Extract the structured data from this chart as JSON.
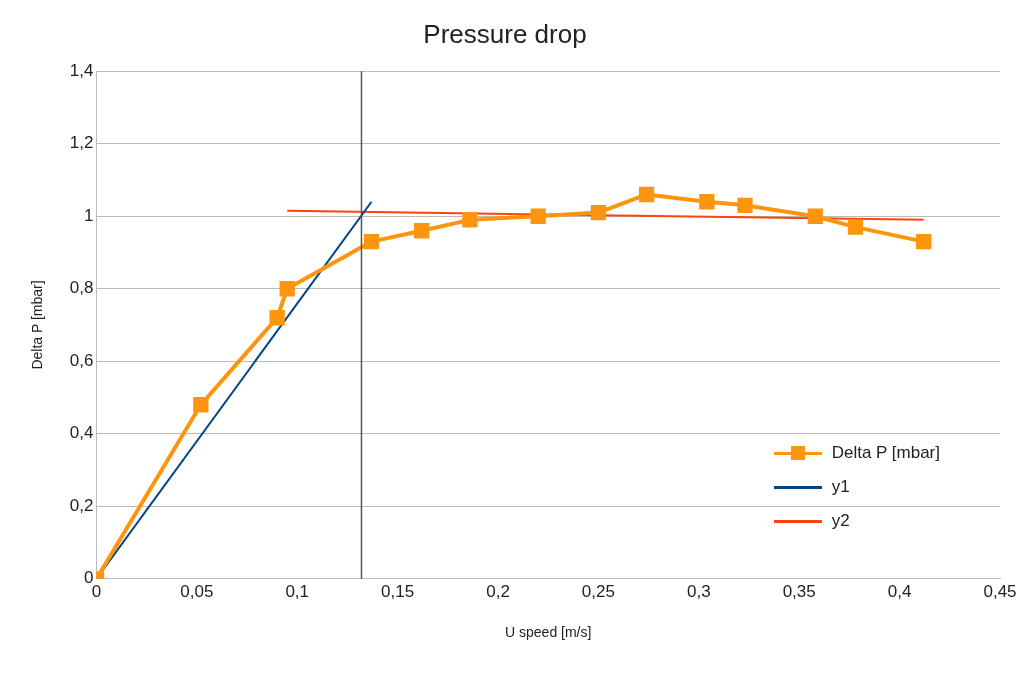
{
  "chart_data": {
    "type": "line",
    "title": "Pressure drop",
    "xlabel": "U speed [m/s]",
    "ylabel": "Delta P [mbar]",
    "xlim": [
      0,
      0.45
    ],
    "ylim": [
      0,
      1.4
    ],
    "xticks": [
      0,
      {
        "value": 0.05,
        "label": "0,05"
      },
      {
        "value": 0.1,
        "label": "0,1"
      },
      {
        "value": 0.15,
        "label": "0,15"
      },
      {
        "value": 0.2,
        "label": "0,2"
      },
      {
        "value": 0.25,
        "label": "0,25"
      },
      {
        "value": 0.3,
        "label": "0,3"
      },
      {
        "value": 0.35,
        "label": "0,35"
      },
      {
        "value": 0.4,
        "label": "0,4"
      },
      {
        "value": 0.45,
        "label": "0,45"
      }
    ],
    "yticks": [
      0,
      {
        "value": 0.2,
        "label": "0,2"
      },
      {
        "value": 0.4,
        "label": "0,4"
      },
      {
        "value": 0.6,
        "label": "0,6"
      },
      {
        "value": 0.8,
        "label": "0,8"
      },
      1,
      {
        "value": 1.2,
        "label": "1,2"
      },
      {
        "value": 1.4,
        "label": "1,4"
      }
    ],
    "grid": "y",
    "legend": "right",
    "marker": "square",
    "line_style": "solid",
    "series": [
      {
        "name": "Delta P [mbar]",
        "color": "#ff950e",
        "x": [
          0,
          0.052,
          0.09,
          0.095,
          0.137,
          0.162,
          0.186,
          0.22,
          0.25,
          0.274,
          0.304,
          0.323,
          0.358,
          0.378,
          0.412
        ],
        "values": [
          0,
          0.48,
          0.72,
          0.8,
          0.93,
          0.96,
          0.99,
          1.0,
          1.01,
          1.06,
          1.04,
          1.03,
          1.0,
          0.97,
          0.93
        ]
      },
      {
        "name": "y1",
        "color": "#004586",
        "marker": "none",
        "x": [
          0,
          0.137
        ],
        "values": [
          0,
          1.04
        ]
      },
      {
        "name": "y2",
        "color": "#ff420e",
        "marker": "none",
        "x": [
          0.095,
          0.412
        ],
        "values": [
          1.015,
          0.99
        ]
      }
    ],
    "ref_lines": [
      {
        "axis": "x",
        "value": 0.132,
        "color": "#555555"
      }
    ]
  }
}
